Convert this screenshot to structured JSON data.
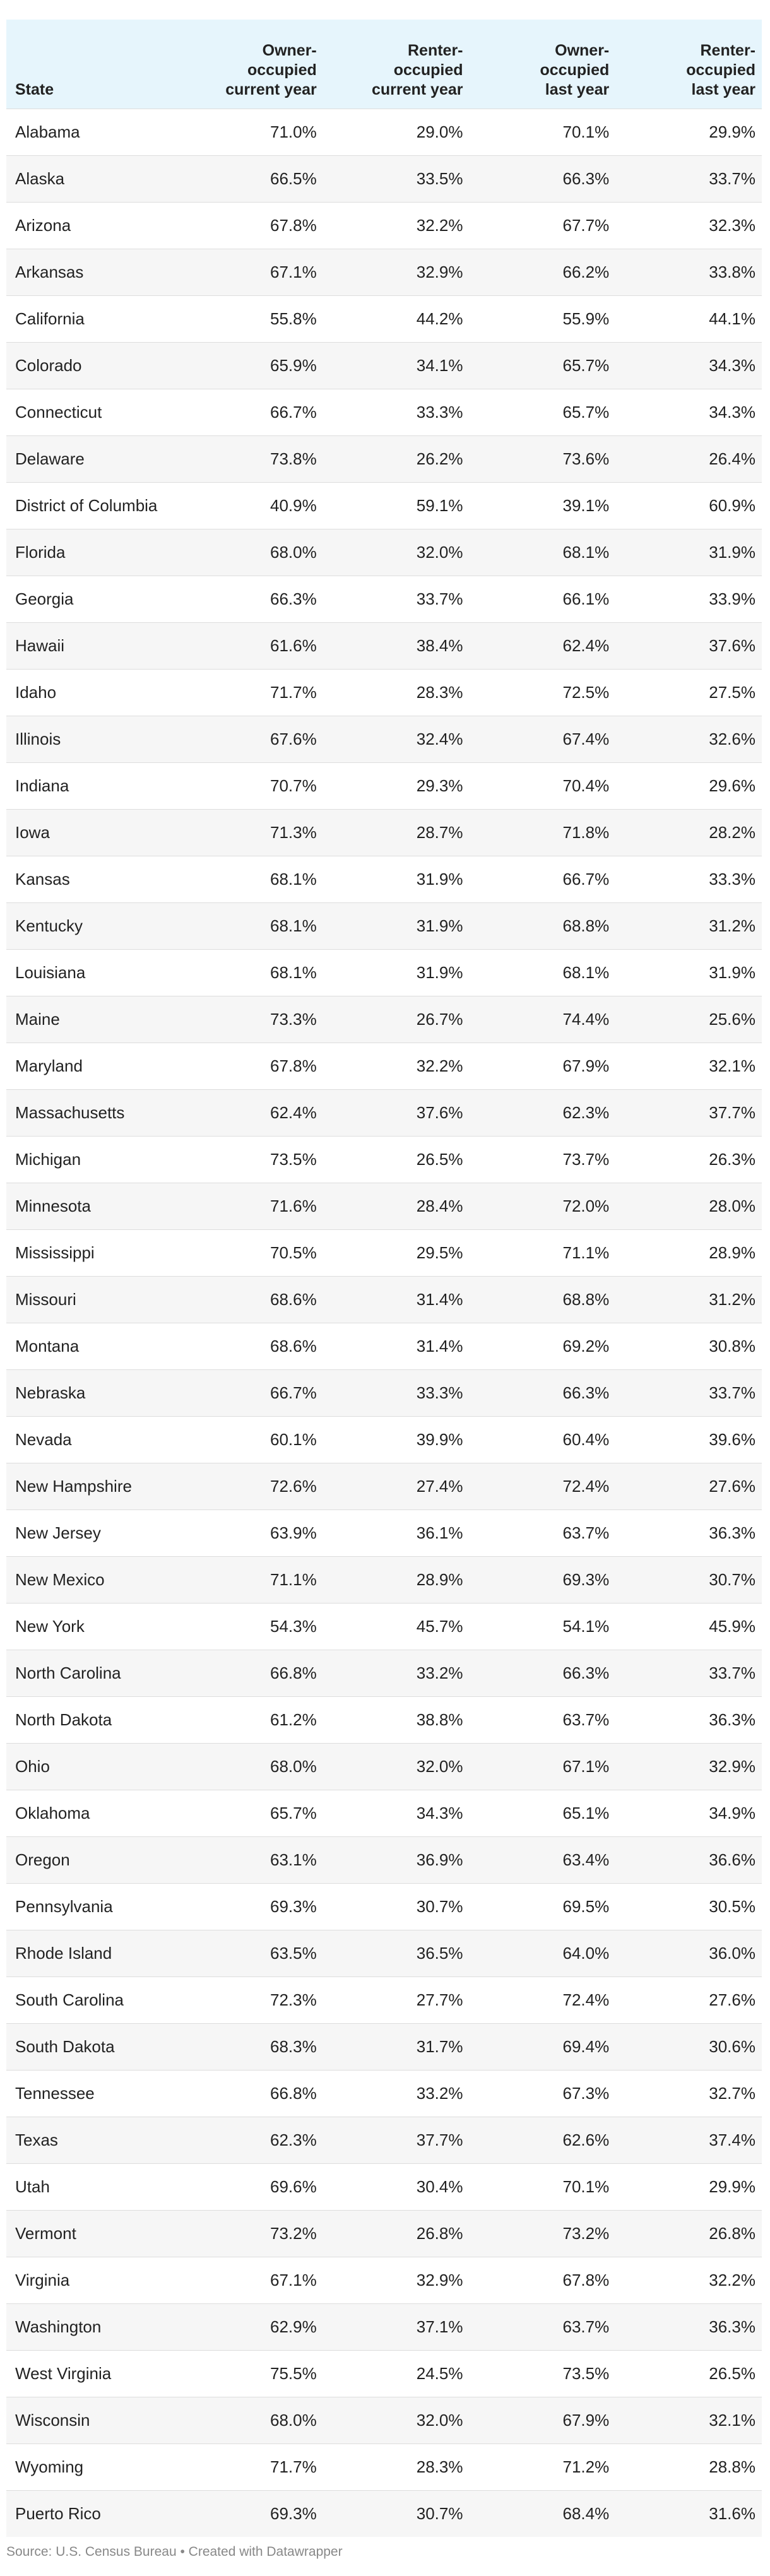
{
  "table": {
    "header": [
      "State",
      "Owner-occupied current year",
      "Renter-occupied current year",
      "Owner-occupied last year",
      "Renter-occupied last year"
    ],
    "rows": [
      [
        "Alabama",
        "71.0%",
        "29.0%",
        "70.1%",
        "29.9%"
      ],
      [
        "Alaska",
        "66.5%",
        "33.5%",
        "66.3%",
        "33.7%"
      ],
      [
        "Arizona",
        "67.8%",
        "32.2%",
        "67.7%",
        "32.3%"
      ],
      [
        "Arkansas",
        "67.1%",
        "32.9%",
        "66.2%",
        "33.8%"
      ],
      [
        "California",
        "55.8%",
        "44.2%",
        "55.9%",
        "44.1%"
      ],
      [
        "Colorado",
        "65.9%",
        "34.1%",
        "65.7%",
        "34.3%"
      ],
      [
        "Connecticut",
        "66.7%",
        "33.3%",
        "65.7%",
        "34.3%"
      ],
      [
        "Delaware",
        "73.8%",
        "26.2%",
        "73.6%",
        "26.4%"
      ],
      [
        "District of Columbia",
        "40.9%",
        "59.1%",
        "39.1%",
        "60.9%"
      ],
      [
        "Florida",
        "68.0%",
        "32.0%",
        "68.1%",
        "31.9%"
      ],
      [
        "Georgia",
        "66.3%",
        "33.7%",
        "66.1%",
        "33.9%"
      ],
      [
        "Hawaii",
        "61.6%",
        "38.4%",
        "62.4%",
        "37.6%"
      ],
      [
        "Idaho",
        "71.7%",
        "28.3%",
        "72.5%",
        "27.5%"
      ],
      [
        "Illinois",
        "67.6%",
        "32.4%",
        "67.4%",
        "32.6%"
      ],
      [
        "Indiana",
        "70.7%",
        "29.3%",
        "70.4%",
        "29.6%"
      ],
      [
        "Iowa",
        "71.3%",
        "28.7%",
        "71.8%",
        "28.2%"
      ],
      [
        "Kansas",
        "68.1%",
        "31.9%",
        "66.7%",
        "33.3%"
      ],
      [
        "Kentucky",
        "68.1%",
        "31.9%",
        "68.8%",
        "31.2%"
      ],
      [
        "Louisiana",
        "68.1%",
        "31.9%",
        "68.1%",
        "31.9%"
      ],
      [
        "Maine",
        "73.3%",
        "26.7%",
        "74.4%",
        "25.6%"
      ],
      [
        "Maryland",
        "67.8%",
        "32.2%",
        "67.9%",
        "32.1%"
      ],
      [
        "Massachusetts",
        "62.4%",
        "37.6%",
        "62.3%",
        "37.7%"
      ],
      [
        "Michigan",
        "73.5%",
        "26.5%",
        "73.7%",
        "26.3%"
      ],
      [
        "Minnesota",
        "71.6%",
        "28.4%",
        "72.0%",
        "28.0%"
      ],
      [
        "Mississippi",
        "70.5%",
        "29.5%",
        "71.1%",
        "28.9%"
      ],
      [
        "Missouri",
        "68.6%",
        "31.4%",
        "68.8%",
        "31.2%"
      ],
      [
        "Montana",
        "68.6%",
        "31.4%",
        "69.2%",
        "30.8%"
      ],
      [
        "Nebraska",
        "66.7%",
        "33.3%",
        "66.3%",
        "33.7%"
      ],
      [
        "Nevada",
        "60.1%",
        "39.9%",
        "60.4%",
        "39.6%"
      ],
      [
        "New Hampshire",
        "72.6%",
        "27.4%",
        "72.4%",
        "27.6%"
      ],
      [
        "New Jersey",
        "63.9%",
        "36.1%",
        "63.7%",
        "36.3%"
      ],
      [
        "New Mexico",
        "71.1%",
        "28.9%",
        "69.3%",
        "30.7%"
      ],
      [
        "New York",
        "54.3%",
        "45.7%",
        "54.1%",
        "45.9%"
      ],
      [
        "North Carolina",
        "66.8%",
        "33.2%",
        "66.3%",
        "33.7%"
      ],
      [
        "North Dakota",
        "61.2%",
        "38.8%",
        "63.7%",
        "36.3%"
      ],
      [
        "Ohio",
        "68.0%",
        "32.0%",
        "67.1%",
        "32.9%"
      ],
      [
        "Oklahoma",
        "65.7%",
        "34.3%",
        "65.1%",
        "34.9%"
      ],
      [
        "Oregon",
        "63.1%",
        "36.9%",
        "63.4%",
        "36.6%"
      ],
      [
        "Pennsylvania",
        "69.3%",
        "30.7%",
        "69.5%",
        "30.5%"
      ],
      [
        "Rhode Island",
        "63.5%",
        "36.5%",
        "64.0%",
        "36.0%"
      ],
      [
        "South Carolina",
        "72.3%",
        "27.7%",
        "72.4%",
        "27.6%"
      ],
      [
        "South Dakota",
        "68.3%",
        "31.7%",
        "69.4%",
        "30.6%"
      ],
      [
        "Tennessee",
        "66.8%",
        "33.2%",
        "67.3%",
        "32.7%"
      ],
      [
        "Texas",
        "62.3%",
        "37.7%",
        "62.6%",
        "37.4%"
      ],
      [
        "Utah",
        "69.6%",
        "30.4%",
        "70.1%",
        "29.9%"
      ],
      [
        "Vermont",
        "73.2%",
        "26.8%",
        "73.2%",
        "26.8%"
      ],
      [
        "Virginia",
        "67.1%",
        "32.9%",
        "67.8%",
        "32.2%"
      ],
      [
        "Washington",
        "62.9%",
        "37.1%",
        "63.7%",
        "36.3%"
      ],
      [
        "West Virginia",
        "75.5%",
        "24.5%",
        "73.5%",
        "26.5%"
      ],
      [
        "Wisconsin",
        "68.0%",
        "32.0%",
        "67.9%",
        "32.1%"
      ],
      [
        "Wyoming",
        "71.7%",
        "28.3%",
        "71.2%",
        "28.8%"
      ],
      [
        "Puerto Rico",
        "69.3%",
        "30.7%",
        "68.4%",
        "31.6%"
      ]
    ]
  },
  "source": "Source: U.S. Census Bureau • Created with Datawrapper"
}
